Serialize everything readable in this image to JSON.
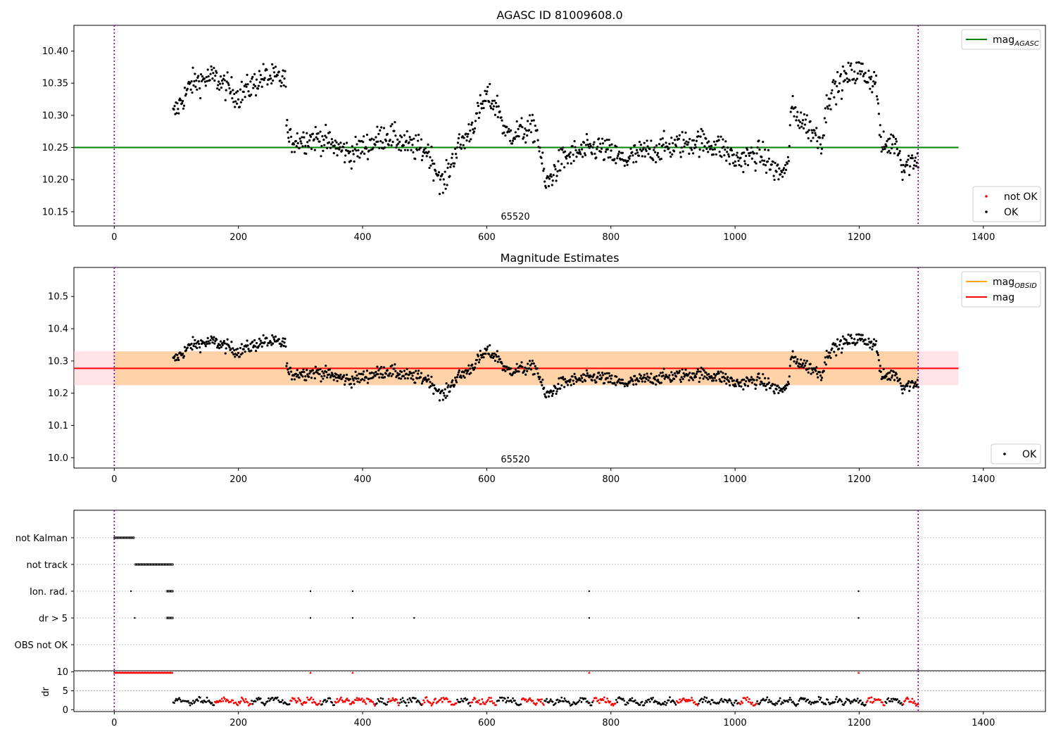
{
  "chart_data": [
    {
      "type": "scatter",
      "title": "AGASC ID 81009608.0",
      "xlim": [
        -65,
        1500
      ],
      "ylim": [
        10.128,
        10.44
      ],
      "xticks": [
        0,
        200,
        400,
        600,
        800,
        1000,
        1200,
        1400
      ],
      "xtick_labels": [
        "0",
        "200",
        "400",
        "600",
        "800",
        "1000",
        "1200",
        "1400"
      ],
      "yticks": [
        10.15,
        10.2,
        10.25,
        10.3,
        10.35,
        10.4
      ],
      "ytick_labels": [
        "10.15",
        "10.20",
        "10.25",
        "10.30",
        "10.35",
        "10.40"
      ],
      "hlines": [
        {
          "name": "mag_AGASC",
          "y": 10.25,
          "x_range": [
            -65,
            1360
          ],
          "color": "#008000"
        }
      ],
      "vlines_x": [
        0,
        1295
      ],
      "annotation": "65520",
      "series": [
        {
          "name": "not OK",
          "color": "#ff0000",
          "points": []
        },
        {
          "name": "OK",
          "color": "#000000",
          "profile": [
            [
              95,
              10.3
            ],
            [
              125,
              10.35
            ],
            [
              160,
              10.36
            ],
            [
              200,
              10.33
            ],
            [
              240,
              10.36
            ],
            [
              275,
              10.355
            ],
            [
              280,
              10.26
            ],
            [
              330,
              10.265
            ],
            [
              380,
              10.24
            ],
            [
              440,
              10.27
            ],
            [
              480,
              10.25
            ],
            [
              505,
              10.245
            ],
            [
              530,
              10.19
            ],
            [
              550,
              10.245
            ],
            [
              570,
              10.27
            ],
            [
              600,
              10.33
            ],
            [
              620,
              10.31
            ],
            [
              630,
              10.27
            ],
            [
              680,
              10.28
            ],
            [
              695,
              10.19
            ],
            [
              720,
              10.23
            ],
            [
              740,
              10.24
            ],
            [
              780,
              10.25
            ],
            [
              820,
              10.23
            ],
            [
              860,
              10.245
            ],
            [
              940,
              10.26
            ],
            [
              980,
              10.25
            ],
            [
              1000,
              10.23
            ],
            [
              1040,
              10.24
            ],
            [
              1070,
              10.21
            ],
            [
              1085,
              10.215
            ],
            [
              1090,
              10.31
            ],
            [
              1120,
              10.28
            ],
            [
              1140,
              10.26
            ],
            [
              1150,
              10.33
            ],
            [
              1180,
              10.36
            ],
            [
              1200,
              10.37
            ],
            [
              1228,
              10.35
            ],
            [
              1235,
              10.25
            ],
            [
              1260,
              10.26
            ],
            [
              1270,
              10.22
            ],
            [
              1295,
              10.235
            ]
          ],
          "spread": 0.022,
          "n": 1100
        }
      ],
      "legends": [
        {
          "position": "upper-right",
          "entries": [
            {
              "label_main": "mag",
              "label_sub": "AGASC",
              "kind": "line",
              "color": "#008000"
            }
          ]
        },
        {
          "position": "lower-right",
          "entries": [
            {
              "label_main": "not OK",
              "label_sub": "",
              "kind": "dot",
              "color": "#ff0000"
            },
            {
              "label_main": "OK",
              "label_sub": "",
              "kind": "dot",
              "color": "#000000"
            }
          ]
        }
      ]
    },
    {
      "type": "scatter",
      "title": "Magnitude Estimates",
      "xlim": [
        -65,
        1500
      ],
      "ylim": [
        9.968,
        10.59
      ],
      "xticks": [
        0,
        200,
        400,
        600,
        800,
        1000,
        1200,
        1400
      ],
      "xtick_labels": [
        "0",
        "200",
        "400",
        "600",
        "800",
        "1000",
        "1200",
        "1400"
      ],
      "yticks": [
        10.0,
        10.1,
        10.2,
        10.3,
        10.4,
        10.5
      ],
      "ytick_labels": [
        "10.0",
        "10.1",
        "10.2",
        "10.3",
        "10.4",
        "10.5"
      ],
      "hlines": [
        {
          "name": "mag",
          "y": 10.277,
          "x_range": [
            -65,
            1360
          ],
          "color": "#ff0000"
        }
      ],
      "bands": [
        {
          "name": "mag band",
          "y_range": [
            10.225,
            10.33
          ],
          "x_range": [
            -65,
            1360
          ],
          "color": "#ffc0cb",
          "opacity": 0.45
        },
        {
          "name": "mag_OBSID band",
          "y_range": [
            10.225,
            10.33
          ],
          "x_range": [
            0,
            1295
          ],
          "color": "#ffa500",
          "opacity": 0.28
        }
      ],
      "vlines_x": [
        0,
        1295
      ],
      "annotation": "65520",
      "series": [
        {
          "name": "OK",
          "color": "#000000",
          "same_as": "panel1"
        }
      ],
      "legends": [
        {
          "position": "upper-right",
          "entries": [
            {
              "label_main": "mag",
              "label_sub": "OBSID",
              "kind": "line",
              "color": "#ffa500"
            },
            {
              "label_main": "mag",
              "label_sub": "",
              "kind": "line",
              "color": "#ff0000"
            }
          ]
        },
        {
          "position": "lower-right",
          "entries": [
            {
              "label_main": "OK",
              "label_sub": "",
              "kind": "dot",
              "color": "#000000"
            }
          ]
        }
      ]
    },
    {
      "type": "scatter",
      "title": "",
      "xlim": [
        -65,
        1500
      ],
      "categories": [
        "not Kalman",
        "not track",
        "Ion. rad.",
        "dr > 5",
        "OBS not OK"
      ],
      "flag_points": {
        "not Kalman": {
          "x_range": [
            0,
            32
          ],
          "step": 1.5,
          "x": []
        },
        "not track": {
          "x_range": [
            34,
            94
          ],
          "step": 1.5,
          "x": []
        },
        "Ion. rad.": {
          "x_range": [
            85,
            94
          ],
          "step": 1.5,
          "x": [
            27,
            316,
            384,
            765,
            1199
          ]
        },
        "dr > 5": {
          "x_range": [
            85,
            94
          ],
          "step": 1.5,
          "x": [
            33,
            316,
            384,
            483,
            765,
            1199
          ]
        },
        "OBS not OK": {
          "x_range": null,
          "step": 1.5,
          "x": []
        }
      },
      "vlines_x": [
        0,
        1295
      ]
    },
    {
      "type": "scatter",
      "title": "",
      "ylabel": "dr",
      "xlim": [
        -65,
        1500
      ],
      "ylim": [
        -0.5,
        10.3
      ],
      "xticks": [
        0,
        200,
        400,
        600,
        800,
        1000,
        1200,
        1400
      ],
      "xtick_labels": [
        "0",
        "200",
        "400",
        "600",
        "800",
        "1000",
        "1200",
        "1400"
      ],
      "yticks": [
        0,
        5,
        10
      ],
      "ytick_labels": [
        "0",
        "5",
        "10"
      ],
      "red_flat": {
        "x_range": [
          0,
          94
        ],
        "y": 9.8,
        "step": 1.2
      },
      "red_spikes_x": [
        316,
        384,
        765,
        1199
      ],
      "trail": {
        "x_range": [
          95,
          1295
        ],
        "step": 1.6,
        "base": 0.6,
        "amp": 2.8
      },
      "vlines_x": [
        0,
        1295
      ]
    }
  ]
}
